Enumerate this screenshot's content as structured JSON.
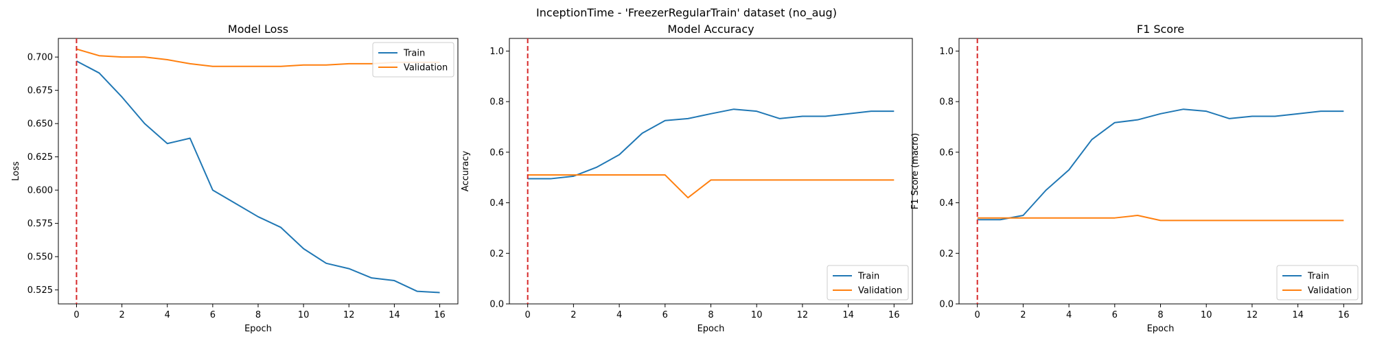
{
  "figure": {
    "suptitle": "InceptionTime - 'FreezerRegularTrain' dataset (no_aug)"
  },
  "colors": {
    "train": "#1f77b4",
    "validation": "#ff7f0e",
    "marker": "#d62728"
  },
  "chart_data": [
    {
      "type": "line",
      "title": "Model Loss",
      "xlabel": "Epoch",
      "ylabel": "Loss",
      "xlim": [
        -0.8,
        16.8
      ],
      "ylim": [
        0.5145,
        0.714
      ],
      "xticks": [
        0,
        2,
        4,
        6,
        8,
        10,
        12,
        14,
        16
      ],
      "yticks": [
        0.525,
        0.55,
        0.575,
        0.6,
        0.625,
        0.65,
        0.675,
        0.7
      ],
      "ytick_labels": [
        "0.525",
        "0.550",
        "0.575",
        "0.600",
        "0.625",
        "0.650",
        "0.675",
        "0.700"
      ],
      "legend_position": "top-right",
      "vline_x": 0,
      "x": [
        0,
        1,
        2,
        3,
        4,
        5,
        6,
        7,
        8,
        9,
        10,
        11,
        12,
        13,
        14,
        15,
        16
      ],
      "series": [
        {
          "name": "Train",
          "values": [
            0.697,
            0.688,
            0.67,
            0.65,
            0.635,
            0.639,
            0.6,
            0.59,
            0.58,
            0.572,
            0.556,
            0.545,
            0.541,
            0.534,
            0.532,
            0.524,
            0.523
          ]
        },
        {
          "name": "Validation",
          "values": [
            0.706,
            0.701,
            0.7,
            0.7,
            0.698,
            0.695,
            0.693,
            0.693,
            0.693,
            0.693,
            0.694,
            0.694,
            0.695,
            0.695,
            0.696,
            0.696,
            0.696
          ]
        }
      ]
    },
    {
      "type": "line",
      "title": "Model Accuracy",
      "xlabel": "Epoch",
      "ylabel": "Accuracy",
      "xlim": [
        -0.8,
        16.8
      ],
      "ylim": [
        0,
        1.05
      ],
      "xticks": [
        0,
        2,
        4,
        6,
        8,
        10,
        12,
        14,
        16
      ],
      "yticks": [
        0,
        0.2,
        0.4,
        0.6,
        0.8,
        1.0
      ],
      "ytick_labels": [
        "0.0",
        "0.2",
        "0.4",
        "0.6",
        "0.8",
        "1.0"
      ],
      "legend_position": "bottom-right",
      "vline_x": 0,
      "x": [
        0,
        1,
        2,
        3,
        4,
        5,
        6,
        7,
        8,
        9,
        10,
        11,
        12,
        13,
        14,
        15,
        16
      ],
      "series": [
        {
          "name": "Train",
          "values": [
            0.495,
            0.495,
            0.505,
            0.54,
            0.59,
            0.675,
            0.725,
            0.733,
            0.752,
            0.77,
            0.762,
            0.733,
            0.742,
            0.742,
            0.752,
            0.762,
            0.762
          ]
        },
        {
          "name": "Validation",
          "values": [
            0.51,
            0.51,
            0.51,
            0.51,
            0.51,
            0.51,
            0.51,
            0.42,
            0.49,
            0.49,
            0.49,
            0.49,
            0.49,
            0.49,
            0.49,
            0.49,
            0.49
          ]
        }
      ]
    },
    {
      "type": "line",
      "title": "F1 Score",
      "xlabel": "Epoch",
      "ylabel": "F1 Score (macro)",
      "xlim": [
        -0.8,
        16.8
      ],
      "ylim": [
        0,
        1.05
      ],
      "xticks": [
        0,
        2,
        4,
        6,
        8,
        10,
        12,
        14,
        16
      ],
      "yticks": [
        0,
        0.2,
        0.4,
        0.6,
        0.8,
        1.0
      ],
      "ytick_labels": [
        "0.0",
        "0.2",
        "0.4",
        "0.6",
        "0.8",
        "1.0"
      ],
      "legend_position": "bottom-right",
      "vline_x": 0,
      "x": [
        0,
        1,
        2,
        3,
        4,
        5,
        6,
        7,
        8,
        9,
        10,
        11,
        12,
        13,
        14,
        15,
        16
      ],
      "series": [
        {
          "name": "Train",
          "values": [
            0.333,
            0.333,
            0.35,
            0.45,
            0.53,
            0.65,
            0.717,
            0.728,
            0.752,
            0.77,
            0.762,
            0.733,
            0.742,
            0.742,
            0.752,
            0.762,
            0.762
          ]
        },
        {
          "name": "Validation",
          "values": [
            0.34,
            0.34,
            0.34,
            0.34,
            0.34,
            0.34,
            0.34,
            0.35,
            0.33,
            0.33,
            0.33,
            0.33,
            0.33,
            0.33,
            0.33,
            0.33,
            0.33
          ]
        }
      ]
    }
  ]
}
